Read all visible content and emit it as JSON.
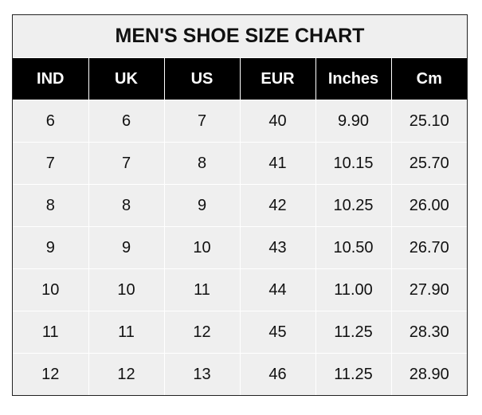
{
  "title": "MEN'S SHOE SIZE CHART",
  "table": {
    "columns": [
      "IND",
      "UK",
      "US",
      "EUR",
      "Inches",
      "Cm"
    ],
    "rows": [
      [
        "6",
        "6",
        "7",
        "40",
        "9.90",
        "25.10"
      ],
      [
        "7",
        "7",
        "8",
        "41",
        "10.15",
        "25.70"
      ],
      [
        "8",
        "8",
        "9",
        "42",
        "10.25",
        "26.00"
      ],
      [
        "9",
        "9",
        "10",
        "43",
        "10.50",
        "26.70"
      ],
      [
        "10",
        "10",
        "11",
        "44",
        "11.00",
        "27.90"
      ],
      [
        "11",
        "11",
        "12",
        "45",
        "11.25",
        "28.30"
      ],
      [
        "12",
        "12",
        "13",
        "46",
        "11.25",
        "28.90"
      ]
    ]
  },
  "colors": {
    "header_bg": "#000000",
    "cell_bg": "#efefef",
    "grid": "#ffffff"
  }
}
